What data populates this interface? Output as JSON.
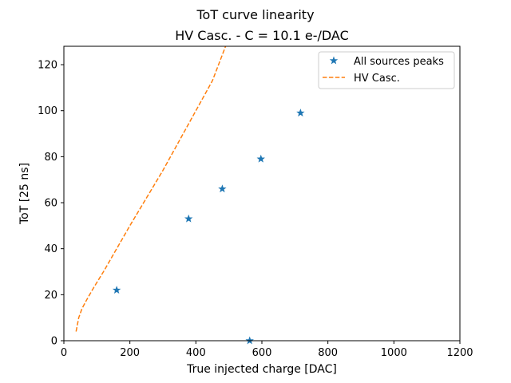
{
  "chart_data": {
    "type": "scatter",
    "suptitle": "ToT curve linearity",
    "title": "HV Casc. - C = 10.1 e-/DAC",
    "xlabel": "True injected charge [DAC]",
    "ylabel": "ToT [25 ns]",
    "xlim": [
      0,
      1200
    ],
    "ylim": [
      0,
      128
    ],
    "xticks": [
      0,
      200,
      400,
      600,
      800,
      1000,
      1200
    ],
    "yticks": [
      0,
      20,
      40,
      60,
      80,
      100,
      120
    ],
    "grid": false,
    "legend_position": "top-right",
    "series": [
      {
        "name": "All sources peaks",
        "kind": "scatter",
        "marker": "star",
        "color": "#1f77b4",
        "x": [
          160,
          378,
          480,
          597,
          717,
          563
        ],
        "y": [
          22,
          53,
          66,
          79,
          99,
          0
        ]
      },
      {
        "name": "HV Casc.",
        "kind": "line",
        "linestyle": "dashed",
        "color": "#ff7f0e",
        "x": [
          37,
          45,
          55,
          70,
          90,
          120,
          160,
          200,
          250,
          300,
          350,
          400,
          450,
          490
        ],
        "y": [
          4,
          10,
          14,
          18,
          23,
          30,
          40,
          50,
          62,
          74,
          87,
          100,
          113,
          128
        ]
      }
    ]
  }
}
